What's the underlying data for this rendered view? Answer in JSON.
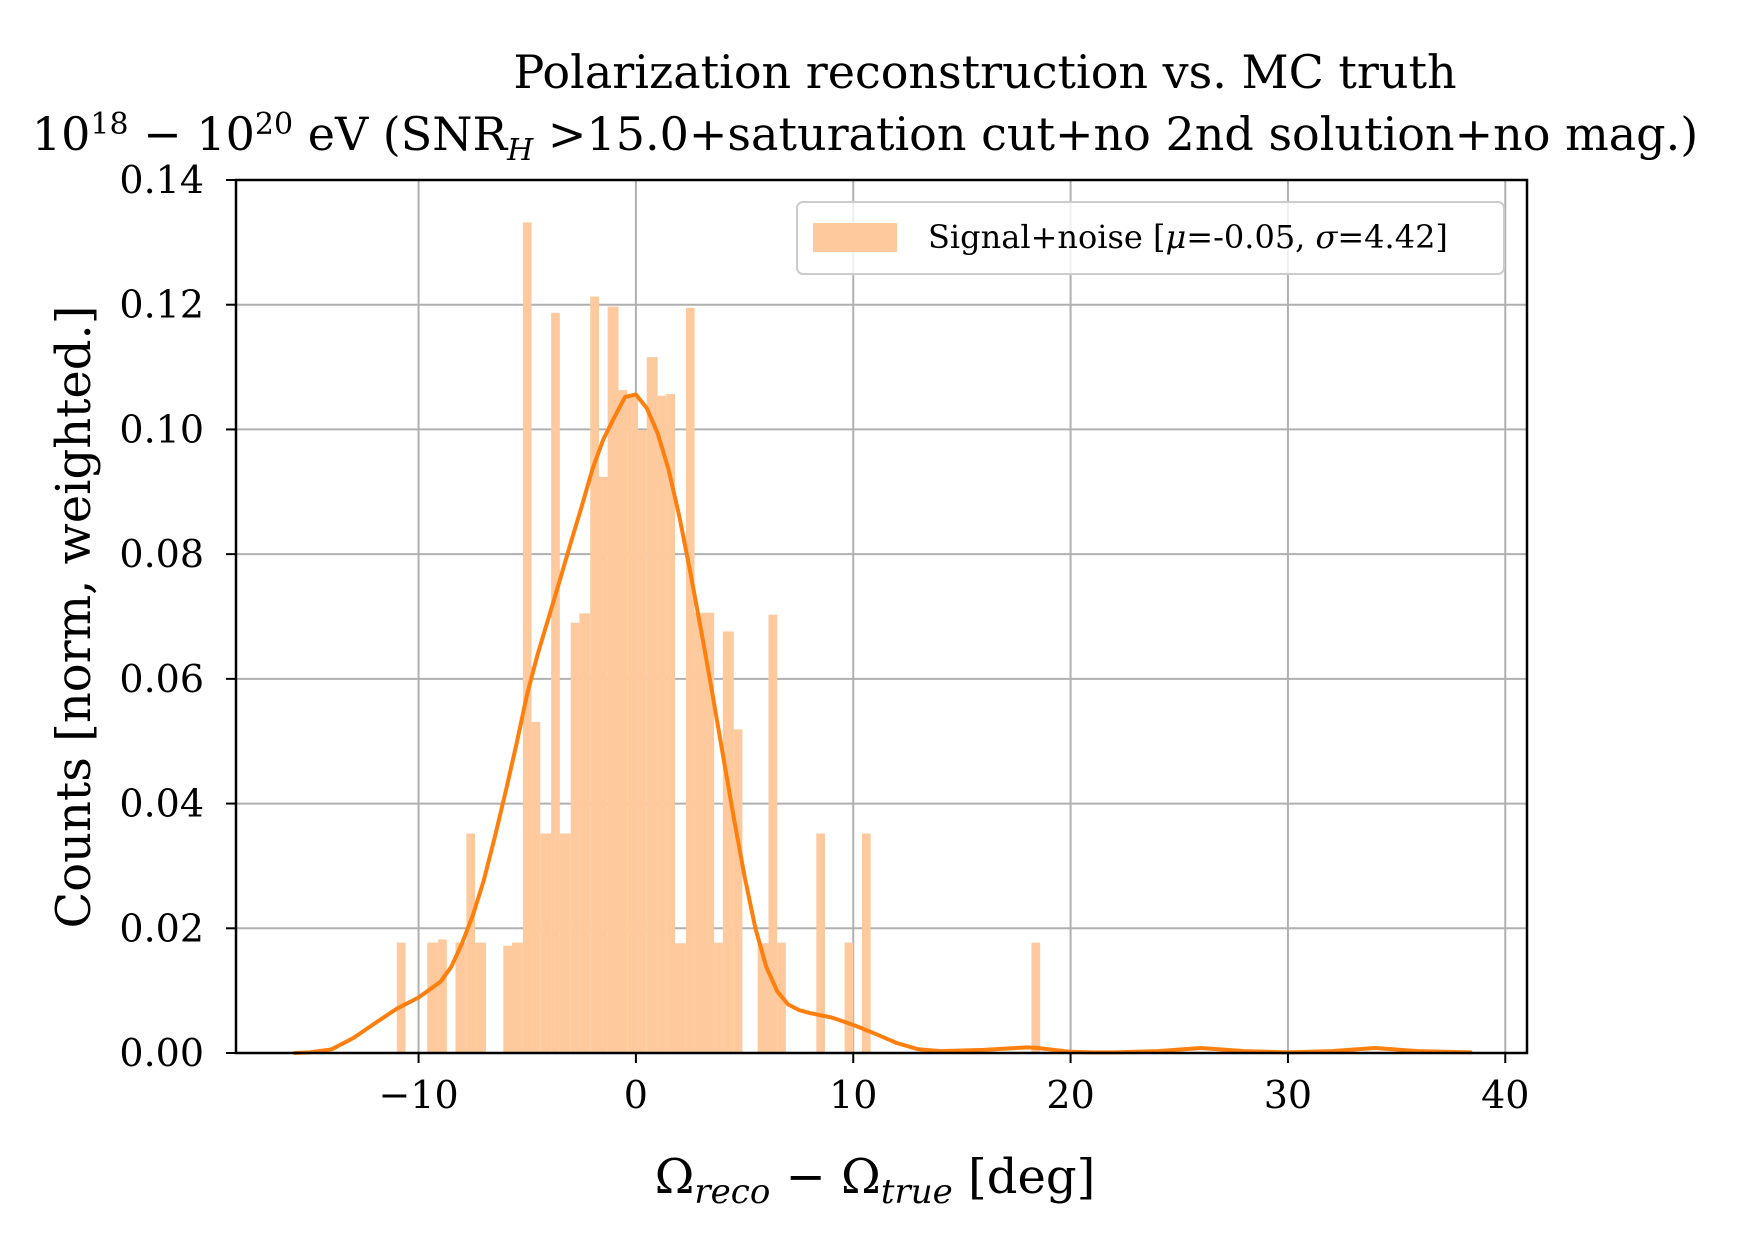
{
  "chart_data": {
    "type": "bar",
    "title_line1": "Polarization reconstruction vs. MC truth",
    "title_line2_parts": {
      "base1": "10",
      "exp1": "18",
      "dash": " − ",
      "base2": "10",
      "exp2": "20",
      "rest1": " eV (SNR",
      "sub": "H",
      "rest2": " >15.0+saturation cut+no 2nd solution+no mag.)"
    },
    "xlabel_parts": {
      "omega1": "Ω",
      "sub1": "reco",
      "minus": " − ",
      "omega2": "Ω",
      "sub2": "true",
      "unit": " [deg]"
    },
    "ylabel": "Counts [norm, weighted.]",
    "legend": {
      "pre": "Signal+noise [",
      "mu": "μ",
      "mu_val": "=-0.05, ",
      "sigma": "σ",
      "sigma_val": "=4.42]"
    },
    "xlim": [
      -18.4,
      41.0
    ],
    "ylim": [
      0.0,
      0.14
    ],
    "x_ticks": [
      -10,
      0,
      10,
      20,
      30,
      40
    ],
    "x_tick_labels": [
      "−10",
      "0",
      "10",
      "20",
      "30",
      "40"
    ],
    "y_ticks": [
      0.0,
      0.02,
      0.04,
      0.06,
      0.08,
      0.1,
      0.12,
      0.14
    ],
    "y_tick_labels": [
      "0.00",
      "0.02",
      "0.04",
      "0.06",
      "0.08",
      "0.10",
      "0.12",
      "0.14"
    ],
    "grid": true,
    "legend_position": "top-right",
    "colors": {
      "hist": "#fdc99d",
      "kde": "#ff7f0e",
      "grid": "#b0b0b0",
      "axis": "#000000"
    },
    "hist": {
      "bins": [
        {
          "x0": -11.0,
          "x1": -10.6,
          "y": 0.0177
        },
        {
          "x0": -9.6,
          "x1": -9.1,
          "y": 0.0177
        },
        {
          "x0": -9.1,
          "x1": -8.7,
          "y": 0.0182
        },
        {
          "x0": -8.3,
          "x1": -7.8,
          "y": 0.0177
        },
        {
          "x0": -7.8,
          "x1": -7.4,
          "y": 0.0352
        },
        {
          "x0": -7.4,
          "x1": -6.9,
          "y": 0.0177
        },
        {
          "x0": -6.1,
          "x1": -5.7,
          "y": 0.0172
        },
        {
          "x0": -5.7,
          "x1": -5.2,
          "y": 0.0177
        },
        {
          "x0": -5.2,
          "x1": -4.8,
          "y": 0.1332
        },
        {
          "x0": -4.8,
          "x1": -4.4,
          "y": 0.0531
        },
        {
          "x0": -4.4,
          "x1": -3.9,
          "y": 0.0352
        },
        {
          "x0": -3.9,
          "x1": -3.5,
          "y": 0.1187
        },
        {
          "x0": -3.5,
          "x1": -3.0,
          "y": 0.0352
        },
        {
          "x0": -3.0,
          "x1": -2.6,
          "y": 0.069
        },
        {
          "x0": -2.6,
          "x1": -2.1,
          "y": 0.0705
        },
        {
          "x0": -2.1,
          "x1": -1.7,
          "y": 0.1213
        },
        {
          "x0": -1.7,
          "x1": -1.3,
          "y": 0.0924
        },
        {
          "x0": -1.3,
          "x1": -0.8,
          "y": 0.1197
        },
        {
          "x0": -0.8,
          "x1": -0.4,
          "y": 0.1063
        },
        {
          "x0": -0.4,
          "x1": 0.1,
          "y": 0.1056
        },
        {
          "x0": 0.1,
          "x1": 0.5,
          "y": 0.0999
        },
        {
          "x0": 0.5,
          "x1": 1.0,
          "y": 0.1116
        },
        {
          "x0": 1.0,
          "x1": 1.4,
          "y": 0.1054
        },
        {
          "x0": 1.4,
          "x1": 1.8,
          "y": 0.1057
        },
        {
          "x0": 1.8,
          "x1": 2.3,
          "y": 0.0176
        },
        {
          "x0": 2.3,
          "x1": 2.7,
          "y": 0.1195
        },
        {
          "x0": 2.7,
          "x1": 3.2,
          "y": 0.0706
        },
        {
          "x0": 3.2,
          "x1": 3.6,
          "y": 0.0706
        },
        {
          "x0": 3.6,
          "x1": 4.0,
          "y": 0.0177
        },
        {
          "x0": 4.0,
          "x1": 4.5,
          "y": 0.0676
        },
        {
          "x0": 4.5,
          "x1": 4.9,
          "y": 0.0519
        },
        {
          "x0": 5.6,
          "x1": 6.1,
          "y": 0.0176
        },
        {
          "x0": 6.1,
          "x1": 6.5,
          "y": 0.0703
        },
        {
          "x0": 6.5,
          "x1": 6.9,
          "y": 0.0177
        },
        {
          "x0": 8.3,
          "x1": 8.7,
          "y": 0.0352
        },
        {
          "x0": 9.6,
          "x1": 10.0,
          "y": 0.0177
        },
        {
          "x0": 10.4,
          "x1": 10.8,
          "y": 0.0352
        },
        {
          "x0": 18.2,
          "x1": 18.6,
          "y": 0.0177
        }
      ]
    },
    "kde": {
      "x": [
        -15.7,
        -15.0,
        -14.0,
        -13.0,
        -12.0,
        -11.0,
        -10.0,
        -9.0,
        -8.5,
        -8.0,
        -7.5,
        -7.0,
        -6.5,
        -6.0,
        -5.5,
        -5.0,
        -4.5,
        -4.0,
        -3.5,
        -3.0,
        -2.5,
        -2.0,
        -1.5,
        -1.0,
        -0.5,
        0.0,
        0.5,
        1.0,
        1.5,
        2.0,
        2.5,
        3.0,
        3.5,
        4.0,
        4.5,
        5.0,
        5.5,
        6.0,
        6.5,
        7.0,
        7.5,
        8.0,
        9.0,
        10.0,
        11.0,
        12.0,
        13.0,
        14.0,
        15.0,
        16.0,
        17.0,
        18.0,
        18.5,
        19.0,
        20.0,
        21.0,
        22.0,
        24.0,
        26.0,
        28.0,
        30.0,
        32.0,
        34.0,
        36.0,
        38.4
      ],
      "y": [
        0.0,
        0.0001,
        0.0006,
        0.0024,
        0.0048,
        0.0071,
        0.0089,
        0.0114,
        0.0138,
        0.0176,
        0.0221,
        0.0277,
        0.0345,
        0.0418,
        0.0495,
        0.0576,
        0.0642,
        0.07,
        0.0758,
        0.0818,
        0.0876,
        0.0936,
        0.0984,
        0.1019,
        0.1052,
        0.1056,
        0.1034,
        0.0994,
        0.0936,
        0.086,
        0.0772,
        0.0678,
        0.058,
        0.0479,
        0.0378,
        0.0283,
        0.02,
        0.0138,
        0.0099,
        0.0078,
        0.0069,
        0.0064,
        0.0057,
        0.0045,
        0.0031,
        0.0016,
        0.0006,
        0.0003,
        0.0004,
        0.0005,
        0.0007,
        0.0009,
        0.0008,
        0.0006,
        0.0002,
        0.0001,
        0.0001,
        0.0003,
        0.0008,
        0.0003,
        0.0001,
        0.0003,
        0.0008,
        0.0003,
        0.0001
      ]
    }
  }
}
